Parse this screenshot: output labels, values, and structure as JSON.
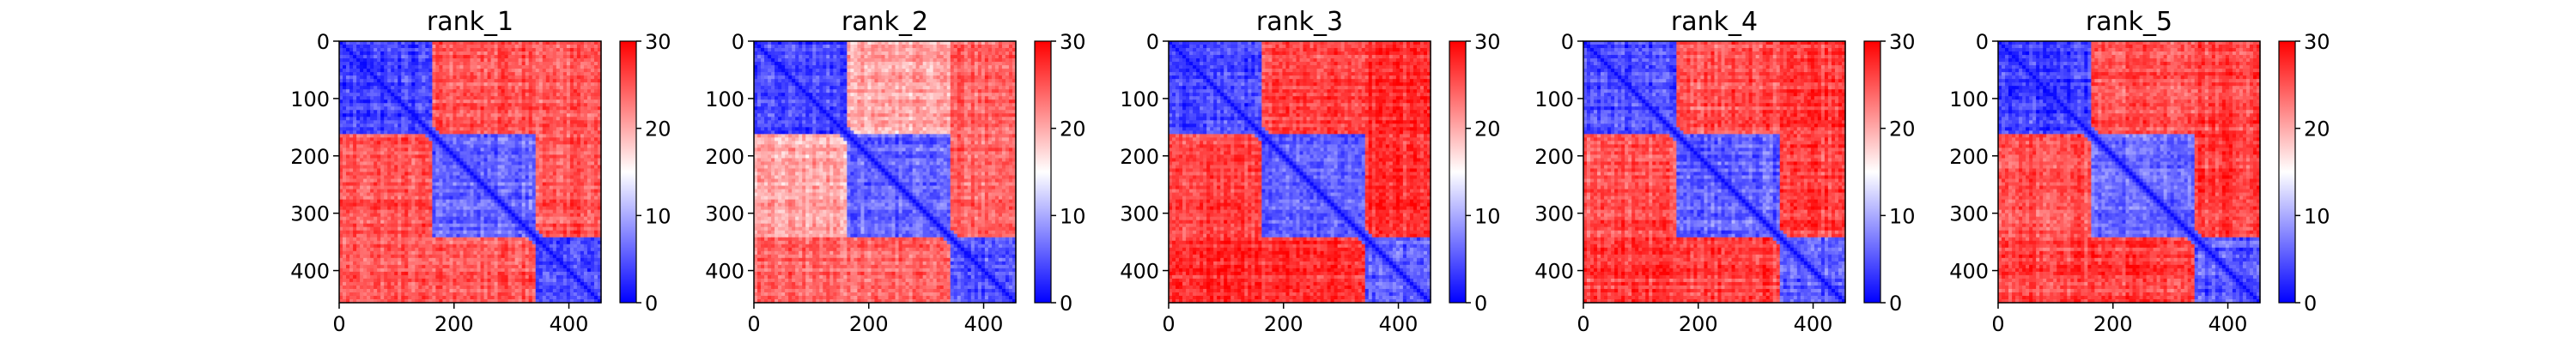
{
  "chart_data": [
    {
      "type": "heatmap",
      "title": "rank_1",
      "xticks": [
        0,
        200,
        400
      ],
      "yticks": [
        0,
        100,
        200,
        300,
        400
      ],
      "x_range": [
        0,
        456
      ],
      "y_range": [
        0,
        456
      ],
      "colorbar": {
        "ticks": [
          0,
          10,
          20,
          30
        ],
        "range": [
          0,
          30
        ],
        "colormap": "bwr"
      },
      "domain_boundaries": [
        0,
        160,
        270,
        340,
        456
      ],
      "block_values": [
        [
          4,
          25,
          25,
          25
        ],
        [
          25,
          6,
          6,
          25
        ],
        [
          25,
          6,
          6,
          25
        ],
        [
          25,
          25,
          25,
          5
        ]
      ]
    },
    {
      "type": "heatmap",
      "title": "rank_2",
      "xticks": [
        0,
        200,
        400
      ],
      "yticks": [
        0,
        100,
        200,
        300,
        400
      ],
      "x_range": [
        0,
        456
      ],
      "y_range": [
        0,
        456
      ],
      "colorbar": {
        "ticks": [
          0,
          10,
          20,
          30
        ],
        "range": [
          0,
          30
        ],
        "colormap": "bwr"
      },
      "domain_boundaries": [
        0,
        160,
        270,
        340,
        456
      ],
      "block_values": [
        [
          4,
          20,
          20,
          24
        ],
        [
          20,
          6,
          6,
          24
        ],
        [
          20,
          6,
          6,
          24
        ],
        [
          24,
          24,
          24,
          5
        ]
      ]
    },
    {
      "type": "heatmap",
      "title": "rank_3",
      "xticks": [
        0,
        200,
        400
      ],
      "yticks": [
        0,
        100,
        200,
        300,
        400
      ],
      "x_range": [
        0,
        456
      ],
      "y_range": [
        0,
        456
      ],
      "colorbar": {
        "ticks": [
          0,
          10,
          20,
          30
        ],
        "range": [
          0,
          30
        ],
        "colormap": "bwr"
      },
      "domain_boundaries": [
        0,
        160,
        270,
        340,
        456
      ],
      "block_values": [
        [
          4,
          26,
          26,
          27
        ],
        [
          26,
          6,
          6,
          27
        ],
        [
          26,
          6,
          6,
          27
        ],
        [
          27,
          27,
          27,
          5
        ]
      ]
    },
    {
      "type": "heatmap",
      "title": "rank_4",
      "xticks": [
        0,
        200,
        400
      ],
      "yticks": [
        0,
        100,
        200,
        300,
        400
      ],
      "x_range": [
        0,
        456
      ],
      "y_range": [
        0,
        456
      ],
      "colorbar": {
        "ticks": [
          0,
          10,
          20,
          30
        ],
        "range": [
          0,
          30
        ],
        "colormap": "bwr"
      },
      "domain_boundaries": [
        0,
        160,
        270,
        340,
        456
      ],
      "block_values": [
        [
          4,
          25,
          25,
          26
        ],
        [
          25,
          6,
          6,
          26
        ],
        [
          25,
          6,
          6,
          26
        ],
        [
          26,
          26,
          26,
          5
        ]
      ]
    },
    {
      "type": "heatmap",
      "title": "rank_5",
      "xticks": [
        0,
        200,
        400
      ],
      "yticks": [
        0,
        100,
        200,
        300,
        400
      ],
      "x_range": [
        0,
        456
      ],
      "y_range": [
        0,
        456
      ],
      "colorbar": {
        "ticks": [
          0,
          10,
          20,
          30
        ],
        "range": [
          0,
          30
        ],
        "colormap": "bwr"
      },
      "domain_boundaries": [
        0,
        160,
        270,
        340,
        456
      ],
      "block_values": [
        [
          4,
          25,
          25,
          26
        ],
        [
          25,
          6,
          6,
          26
        ],
        [
          25,
          6,
          6,
          26
        ],
        [
          26,
          26,
          26,
          5
        ]
      ]
    }
  ]
}
